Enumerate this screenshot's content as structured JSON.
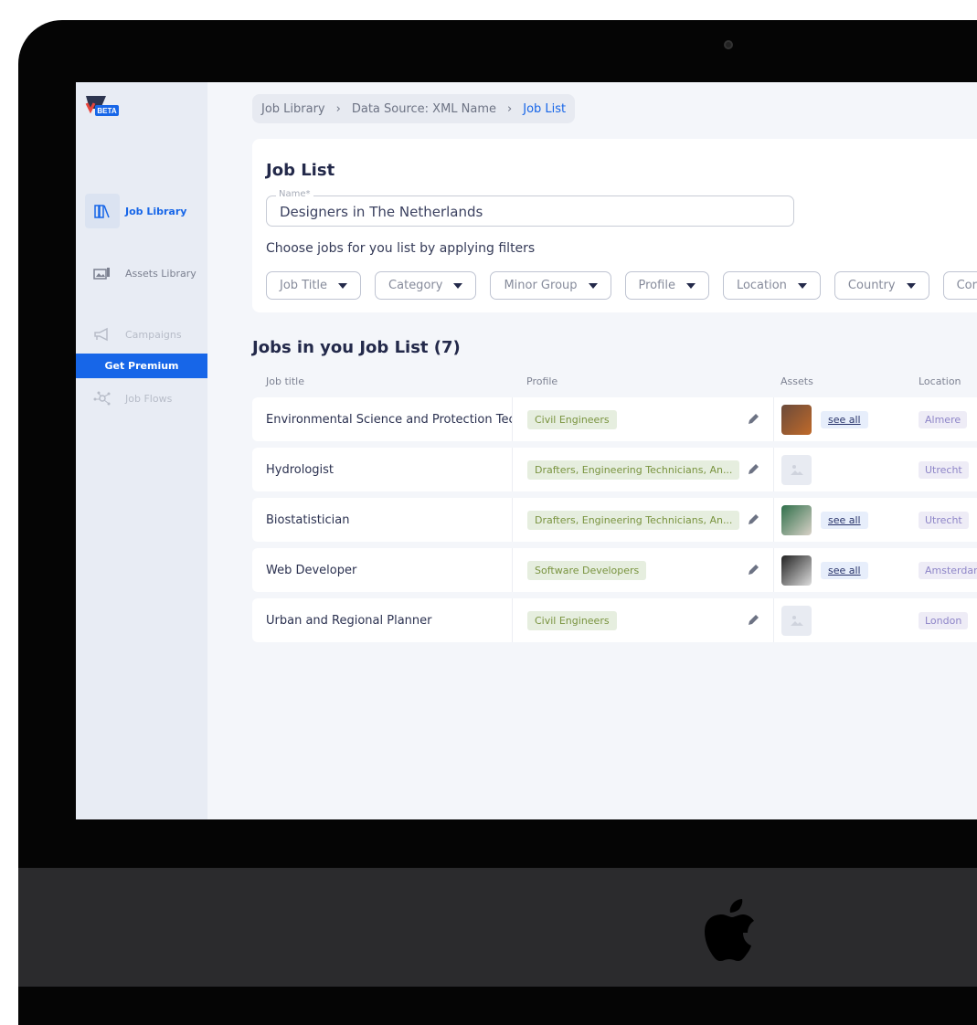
{
  "logo": {
    "badge": "BETA"
  },
  "sidebar": {
    "items": [
      {
        "label": "Job Library",
        "icon": "books-icon",
        "active": true
      },
      {
        "label": "Assets Library",
        "icon": "gallery-icon"
      },
      {
        "label": "Campaigns",
        "icon": "megaphone-icon"
      },
      {
        "label": "Job Flows",
        "icon": "network-icon"
      }
    ],
    "premium": "Get Premium"
  },
  "breadcrumb": [
    "Job Library",
    "Data Source: XML Name",
    "Job List"
  ],
  "card": {
    "title": "Job List",
    "name_label": "Name*",
    "name_value": "Designers in The Netherlands",
    "subtitle": "Choose jobs for you list by applying filters",
    "filters": [
      "Job Title",
      "Category",
      "Minor Group",
      "Profile",
      "Location",
      "Country",
      "Cor"
    ]
  },
  "list": {
    "title": "Jobs in you Job List (7)",
    "headers": [
      "Job title",
      "Profile",
      "Assets",
      "Location"
    ],
    "see_all": "see all",
    "rows": [
      {
        "title": "Environmental Science and Protection Technicians",
        "profile": "Civil Engineers",
        "asset": "photo",
        "location": "Almere"
      },
      {
        "title": "Hydrologist",
        "profile": "Drafters, Engineering Technicians, An...",
        "asset": "placeholder",
        "location": "Utrecht"
      },
      {
        "title": "Biostatistician",
        "profile": "Drafters, Engineering Technicians, An...",
        "asset": "photo",
        "location": "Utrecht"
      },
      {
        "title": "Web Developer",
        "profile": "Software Developers",
        "asset": "photo",
        "location": "Amsterdam"
      },
      {
        "title": "Urban and Regional Planner",
        "profile": "Civil Engineers",
        "asset": "placeholder",
        "location": "London"
      }
    ]
  },
  "colors": {
    "accent": "#1766e8",
    "title": "#23294a",
    "tag_green": "#7a9440",
    "location_purple": "#8e85c8"
  }
}
